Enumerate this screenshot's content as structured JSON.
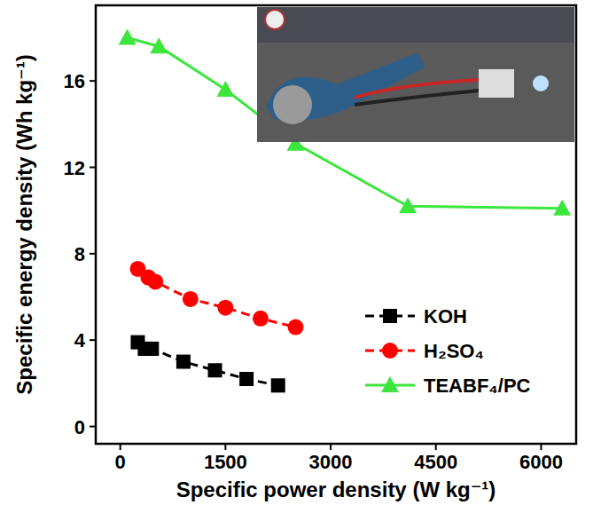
{
  "chart_data": {
    "type": "line",
    "x_label": "Specific power density (W kg⁻¹)",
    "y_label": "Specific energy density (Wh kg⁻¹)",
    "xlim": [
      -350,
      6500
    ],
    "xticks": [
      0,
      1500,
      3000,
      4500,
      6000
    ],
    "ylim": [
      -0.8,
      19.5
    ],
    "yticks": [
      0,
      4,
      8,
      12,
      16
    ],
    "legend": "lower right",
    "series": [
      {
        "name": "KOH",
        "color": "#000000",
        "marker": "square",
        "line_style": "dashed",
        "x": [
          250,
          350,
          450,
          900,
          1350,
          1800,
          2250
        ],
        "values": [
          3.9,
          3.6,
          3.6,
          3.0,
          2.6,
          2.2,
          1.9
        ]
      },
      {
        "name": "H₂SO₄",
        "color": "#ff0000",
        "marker": "circle",
        "line_style": "dashed",
        "x": [
          250,
          400,
          500,
          1000,
          1500,
          2000,
          2500
        ],
        "values": [
          7.3,
          6.9,
          6.7,
          5.9,
          5.5,
          5.0,
          4.6
        ]
      },
      {
        "name": "TEABF₄/PC",
        "color": "#3ce63c",
        "marker": "triangle",
        "line_style": "solid",
        "x": [
          100,
          550,
          1500,
          2500,
          4100,
          6300
        ],
        "values": [
          18.0,
          17.6,
          15.6,
          13.1,
          10.2,
          10.1
        ]
      }
    ]
  }
}
